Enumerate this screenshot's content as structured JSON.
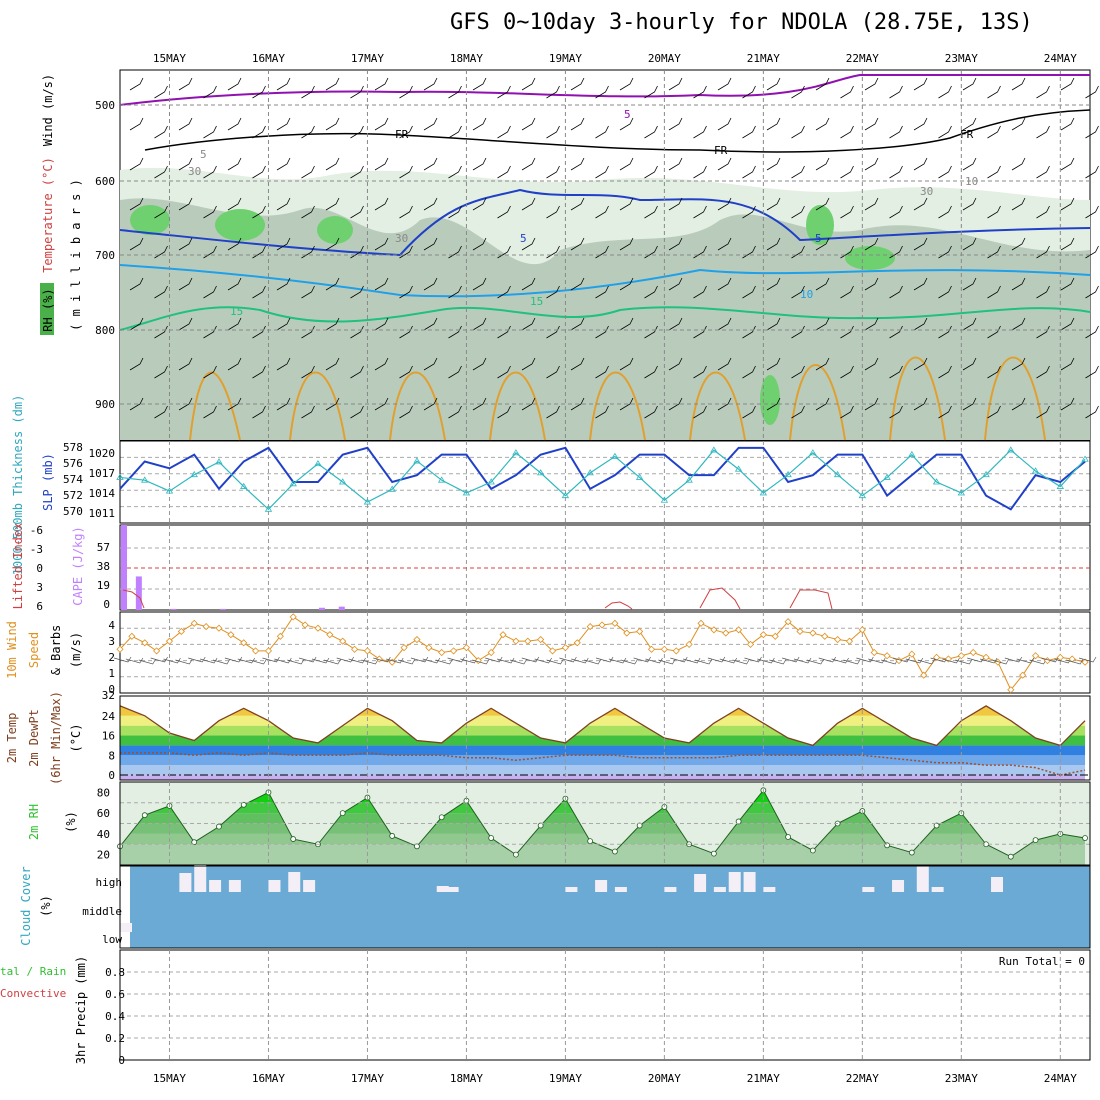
{
  "title": "GFS 0~10day 3-hourly for NDOLA (28.75E, 13S)",
  "dates": [
    "15MAY",
    "16MAY",
    "17MAY",
    "18MAY",
    "19MAY",
    "20MAY",
    "21MAY",
    "22MAY",
    "23MAY",
    "24MAY"
  ],
  "colors": {
    "grid": "#999999",
    "rh_fill_light": "#e3efe3",
    "rh_fill_mid": "#b9ccbc",
    "rh_fill_green": "#6fd06f",
    "slp": "#2040c8",
    "thickness": "#30b8c0",
    "cape": "#c080ff",
    "lifted": "#d04040",
    "wind10": "#e09020",
    "cloud": "#6aaad4",
    "cloud_gap": "#f4eef6",
    "rh2m": "#30c030"
  },
  "upper": {
    "ylabel_wind": "Wind (m/s)",
    "ylabel_temp": "Temperature (°C)",
    "ylabel_rh": "RH (%)",
    "ylabel_mb": "( m i l l i b a r s )",
    "yticks": [
      "500",
      "600",
      "700",
      "800",
      "900"
    ],
    "contour_labels": [
      "5",
      "FR",
      "FR",
      "FR",
      "5",
      "5",
      "10",
      "15",
      "15",
      "5",
      "10",
      "30",
      "30",
      "30"
    ]
  },
  "slp_panel": {
    "ylabel_thk": "1000-500mb Thickness (dm)",
    "ylabel_slp": "SLP (mb)",
    "thk_ticks": [
      "578",
      "576",
      "574",
      "572",
      "570"
    ],
    "slp_ticks": [
      "1020",
      "1017",
      "1014",
      "1011"
    ]
  },
  "cape_panel": {
    "ylabel_li": "Lifted Index",
    "ylabel_cape": "CAPE (J/kg)",
    "li_ticks": [
      "-6",
      "-3",
      "0",
      "3",
      "6"
    ],
    "cape_ticks": [
      "57",
      "38",
      "19",
      "0"
    ]
  },
  "wind_panel": {
    "ylabel1": "10m Wind",
    "ylabel2": "Speed",
    "ylabel3": "& Barbs",
    "ylabel_units": "(m/s)",
    "yticks": [
      "4",
      "3",
      "2",
      "1",
      "0"
    ]
  },
  "temp_panel": {
    "ylabel1": "2m Temp",
    "ylabel2": "2m DewPt",
    "ylabel3": "(6hr Min/Max)",
    "ylabel_units": "(°C)",
    "yticks": [
      "24",
      "16",
      "8",
      "0"
    ],
    "top_tick": "32"
  },
  "rh_panel": {
    "ylabel": "2m RH",
    "ylabel_units": "(%)",
    "yticks": [
      "80",
      "60",
      "40",
      "20"
    ]
  },
  "cloud_panel": {
    "ylabel": "Cloud Cover",
    "ylabel_units": "(%)",
    "levels": [
      "high",
      "middle",
      "low"
    ]
  },
  "precip_panel": {
    "ylabel_total": "tal / Rain",
    "ylabel_conv": "Convective",
    "ylabel_units": "3hr Precip (mm)",
    "yticks": [
      "0.8",
      "0.6",
      "0.4",
      "0.2",
      "0"
    ],
    "run_total": "Run Total = 0"
  },
  "chart_data": [
    {
      "type": "line",
      "title": "SLP (mb) / 1000-500mb Thickness (dm)",
      "x": [
        "14.5",
        "14.75",
        "15.0",
        "15.25",
        "15.5",
        "15.75",
        "16.0",
        "16.25",
        "16.5",
        "16.75",
        "17.0",
        "17.25",
        "17.5",
        "17.75",
        "18.0",
        "18.25",
        "18.5",
        "18.75",
        "19.0",
        "19.25",
        "19.5",
        "19.75",
        "20.0",
        "20.25",
        "20.5",
        "20.75",
        "21.0",
        "21.25",
        "21.5",
        "21.75",
        "22.0",
        "22.25",
        "22.5",
        "22.75",
        "23.0",
        "23.25",
        "23.5",
        "23.75",
        "24.0",
        "24.25"
      ],
      "series": [
        {
          "name": "SLP (mb)",
          "values": [
            1014,
            1018,
            1017,
            1019,
            1014,
            1018,
            1020,
            1015,
            1015,
            1019,
            1020,
            1015,
            1016,
            1019,
            1019,
            1014,
            1016,
            1019,
            1020,
            1014,
            1016,
            1019,
            1019,
            1016,
            1016,
            1020,
            1020,
            1015,
            1016,
            1019,
            1019,
            1013,
            1016,
            1019,
            1019,
            1013,
            1011,
            1016,
            1015,
            1018
          ]
        },
        {
          "name": "1000-500mb Thickness (dm)",
          "values": [
            574.5,
            574.2,
            573.0,
            574.8,
            576.2,
            573.5,
            571.0,
            573.8,
            576.0,
            574.0,
            571.8,
            573.2,
            576.3,
            574.2,
            572.8,
            574.0,
            577.2,
            575.0,
            572.5,
            575.0,
            576.8,
            574.5,
            572.0,
            574.2,
            577.5,
            575.4,
            572.8,
            574.8,
            577.2,
            574.8,
            572.5,
            574.5,
            577.0,
            574.0,
            572.8,
            574.8,
            577.5,
            575.2,
            573.5,
            576.5
          ]
        }
      ],
      "ylim_slp": [
        1009,
        1021
      ],
      "ylim_thk": [
        569.5,
        578.5
      ]
    },
    {
      "type": "bar",
      "title": "CAPE (J/kg) / Lifted Index",
      "x": [
        "14.5",
        "14.65",
        "15.0",
        "15.5",
        "16.5",
        "16.7"
      ],
      "values": [
        76,
        30,
        1,
        1,
        2,
        3
      ],
      "ylim": [
        0,
        76
      ]
    },
    {
      "type": "line",
      "title": "10m Wind Speed (m/s)",
      "x": [
        "14.5",
        "14.62",
        "14.75",
        "14.87",
        "15.0",
        "15.12",
        "15.25",
        "15.37",
        "15.5",
        "15.62",
        "15.75",
        "15.87",
        "16.0",
        "16.12",
        "16.25",
        "16.37",
        "16.5",
        "16.62",
        "16.75",
        "16.87",
        "17.0",
        "17.12",
        "17.25",
        "17.37",
        "17.5",
        "17.62",
        "17.75",
        "17.87",
        "18.0",
        "18.12",
        "18.25",
        "18.37",
        "18.5",
        "18.62",
        "18.75",
        "18.87",
        "19.0",
        "19.12",
        "19.25",
        "19.37",
        "19.5",
        "19.62",
        "19.75",
        "19.87",
        "20.0",
        "20.12",
        "20.25",
        "20.37",
        "20.5",
        "20.62",
        "20.75",
        "20.87",
        "21.0",
        "21.12",
        "21.25",
        "21.37",
        "21.5",
        "21.62",
        "21.75",
        "21.87",
        "22.0",
        "22.12",
        "22.25",
        "22.37",
        "22.5",
        "22.62",
        "22.75",
        "22.87",
        "23.0",
        "23.12",
        "23.25",
        "23.37",
        "23.5",
        "23.62",
        "23.75",
        "23.87",
        "24.0",
        "24.12",
        "24.25"
      ],
      "values": [
        2.7,
        3.5,
        3.1,
        2.6,
        3.2,
        3.8,
        4.3,
        4.1,
        4.0,
        3.6,
        3.1,
        2.6,
        2.6,
        3.5,
        4.7,
        4.2,
        4.0,
        3.6,
        3.2,
        2.7,
        2.6,
        2.1,
        1.9,
        2.8,
        3.3,
        2.8,
        2.5,
        2.6,
        2.8,
        2.0,
        2.5,
        3.6,
        3.2,
        3.2,
        3.3,
        2.6,
        2.8,
        3.1,
        4.1,
        4.2,
        4.3,
        3.7,
        3.8,
        2.7,
        2.7,
        2.6,
        3.0,
        4.3,
        3.9,
        3.7,
        3.9,
        3.0,
        3.6,
        3.5,
        4.4,
        3.8,
        3.7,
        3.5,
        3.3,
        3.2,
        3.9,
        2.5,
        2.3,
        2.0,
        2.4,
        1.1,
        2.2,
        2.1,
        2.3,
        2.5,
        2.2,
        1.9,
        0.2,
        1.1,
        2.3,
        2.0,
        2.2,
        2.1,
        1.9
      ],
      "ylim": [
        0,
        5
      ]
    },
    {
      "type": "area",
      "title": "2m Temp (°C) / 2m DewPt",
      "x": [
        "14.5",
        "14.75",
        "15.0",
        "15.25",
        "15.5",
        "15.75",
        "16.0",
        "16.25",
        "16.5",
        "16.75",
        "17.0",
        "17.25",
        "17.5",
        "17.75",
        "18.0",
        "18.25",
        "18.5",
        "18.75",
        "19.0",
        "19.25",
        "19.5",
        "19.75",
        "20.0",
        "20.25",
        "20.5",
        "20.75",
        "21.0",
        "21.25",
        "21.5",
        "21.75",
        "22.0",
        "22.25",
        "22.5",
        "22.75",
        "23.0",
        "23.25",
        "23.5",
        "23.75",
        "24.0",
        "24.25"
      ],
      "series": [
        {
          "name": "2m Temp",
          "values": [
            28,
            24,
            17,
            14,
            22,
            27,
            22,
            15,
            13,
            20,
            27,
            22,
            14,
            13,
            21,
            27,
            21,
            15,
            13,
            21,
            27,
            21,
            15,
            13,
            21,
            27,
            21,
            15,
            12,
            21,
            27,
            21,
            15,
            12,
            22,
            28,
            22,
            15,
            12,
            22
          ]
        },
        {
          "name": "2m DewPt",
          "values": [
            9,
            9,
            9,
            8,
            9,
            8,
            9,
            8,
            8,
            8,
            9,
            8,
            8,
            8,
            7,
            7,
            6,
            7,
            8,
            8,
            8,
            7,
            7,
            7,
            7,
            8,
            8,
            8,
            8,
            8,
            8,
            7,
            6,
            5,
            5,
            4,
            4,
            3,
            0,
            2
          ]
        }
      ],
      "ylim": [
        -2,
        32
      ]
    },
    {
      "type": "area",
      "title": "2m RH (%)",
      "x": [
        "14.5",
        "14.75",
        "15.0",
        "15.25",
        "15.5",
        "15.75",
        "16.0",
        "16.25",
        "16.5",
        "16.75",
        "17.0",
        "17.25",
        "17.5",
        "17.75",
        "18.0",
        "18.25",
        "18.5",
        "18.75",
        "19.0",
        "19.25",
        "19.5",
        "19.75",
        "20.0",
        "20.25",
        "20.5",
        "20.75",
        "21.0",
        "21.25",
        "21.5",
        "21.75",
        "22.0",
        "22.25",
        "22.5",
        "22.75",
        "23.0",
        "23.25",
        "23.5",
        "23.75",
        "24.0",
        "24.25"
      ],
      "values": [
        28,
        58,
        67,
        32,
        47,
        68,
        80,
        35,
        30,
        60,
        75,
        38,
        28,
        56,
        72,
        36,
        20,
        48,
        74,
        33,
        23,
        48,
        66,
        30,
        21,
        52,
        82,
        37,
        24,
        50,
        62,
        29,
        22,
        48,
        60,
        30,
        18,
        34,
        40,
        36
      ],
      "ylim": [
        10,
        90
      ]
    },
    {
      "type": "bar",
      "title": "Cloud Cover (%)",
      "x": [
        "14.5",
        "15.1",
        "15.25",
        "15.4",
        "15.6",
        "16.0",
        "16.2",
        "16.35",
        "17.7",
        "17.8",
        "19.0",
        "19.3",
        "19.5",
        "20.0",
        "20.3",
        "20.5",
        "20.65",
        "20.8",
        "21.0",
        "22.0",
        "22.3",
        "22.55",
        "22.7",
        "23.3"
      ],
      "values": [
        9,
        19,
        27,
        12,
        12,
        12,
        20,
        12,
        6,
        5,
        5,
        12,
        5,
        5,
        18,
        5,
        20,
        20,
        5,
        5,
        12,
        26,
        5,
        15
      ]
    },
    {
      "type": "bar",
      "title": "3hr Precip (mm)",
      "x": [],
      "values": [],
      "ylim": [
        0,
        1.0
      ]
    }
  ]
}
